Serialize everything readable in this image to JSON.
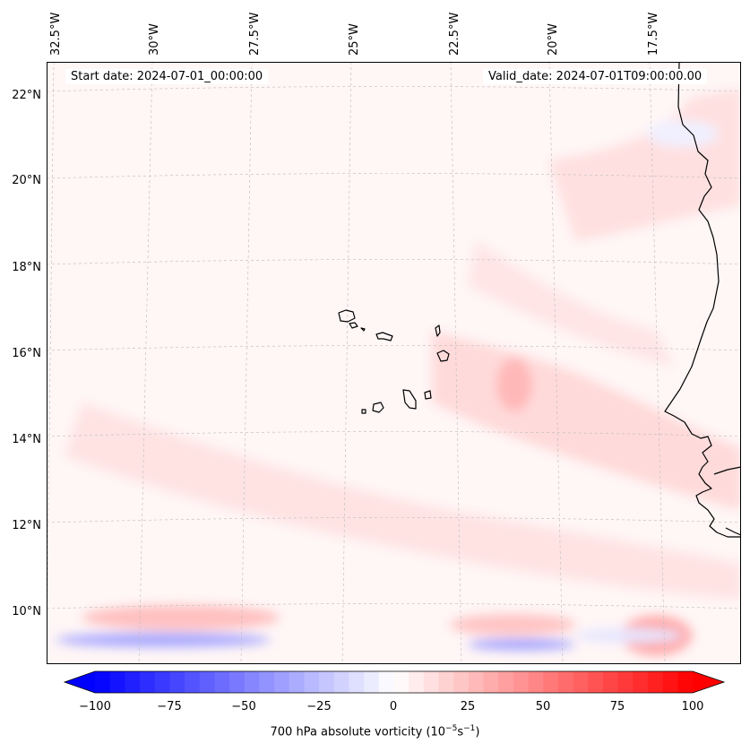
{
  "header": {
    "start_label": "Start date: 2024-07-01_00:00:00",
    "valid_label": "Valid_date: 2024-07-01T09:00:00.00"
  },
  "axes": {
    "lon_labels": [
      "32.5°W",
      "30°W",
      "27.5°W",
      "25°W",
      "22.5°W",
      "20°W",
      "17.5°W"
    ],
    "lat_labels": [
      "22°N",
      "20°N",
      "18°N",
      "16°N",
      "14°N",
      "12°N",
      "10°N"
    ]
  },
  "colorbar": {
    "ticks": [
      "−100",
      "−75",
      "−50",
      "−25",
      "0",
      "25",
      "50",
      "75",
      "100"
    ],
    "min": -100,
    "max": 100,
    "label_main": "700 hPa absolute vorticity (10",
    "label_exp1": "−5",
    "label_mid": "s",
    "label_exp2": "−1",
    "label_end": ")"
  },
  "colors": {
    "negative": "#0000ff",
    "positive": "#ff0000",
    "coastline": "#000000",
    "gridline": "#bbbbbb"
  }
}
